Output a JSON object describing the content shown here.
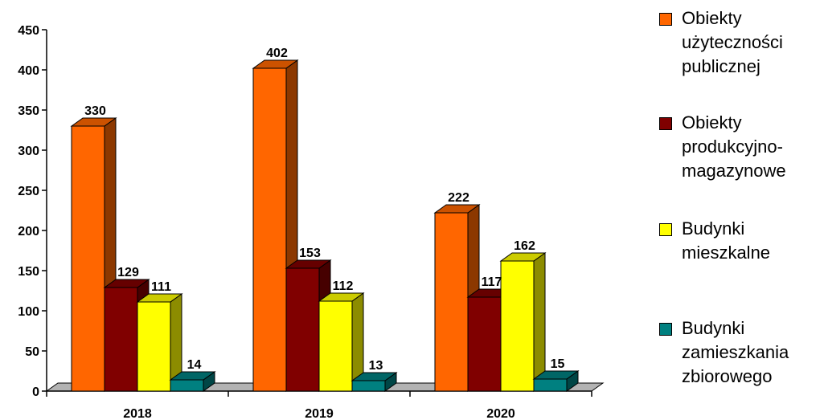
{
  "chart_data": {
    "type": "bar",
    "categories": [
      "2018",
      "2019",
      "2020"
    ],
    "series": [
      {
        "name": "Obiekty użyteczności publicznej",
        "values": [
          330,
          402,
          222
        ],
        "color": "#FF6600"
      },
      {
        "name": "Obiekty produkcyjno-magazynowe",
        "values": [
          129,
          153,
          117
        ],
        "color": "#800000"
      },
      {
        "name": "Budynki mieszkalne",
        "values": [
          111,
          112,
          162
        ],
        "color": "#FFFF00"
      },
      {
        "name": "Budynki zamieszkania zbiorowego",
        "values": [
          14,
          13,
          15
        ],
        "color": "#008080"
      }
    ],
    "title": "",
    "xlabel": "",
    "ylabel": "",
    "ylim": [
      0,
      450
    ],
    "yticks": [
      "0",
      "50",
      "100",
      "150",
      "200",
      "250",
      "300",
      "350",
      "400",
      "450"
    ],
    "grid": false,
    "legend_position": "right",
    "data_labels": true
  }
}
